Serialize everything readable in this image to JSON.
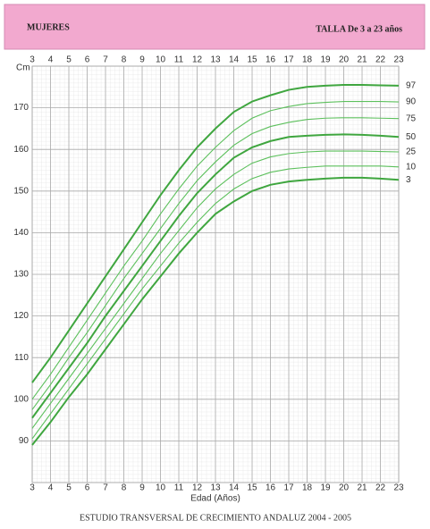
{
  "chart_data": {
    "type": "line",
    "title": "MUJERES",
    "subtitle": "TALLA De 3 a 23 años",
    "x_label": "Edad (Años)",
    "y_label": "Cm",
    "source": "ESTUDIO TRANSVERSAL DE CRECIMIENTO ANDALUZ 2004 - 2005",
    "x": [
      3,
      4,
      5,
      6,
      7,
      8,
      9,
      10,
      11,
      12,
      13,
      14,
      15,
      16,
      17,
      18,
      19,
      20,
      21,
      22,
      23
    ],
    "xlim": [
      3,
      23
    ],
    "xticks": [
      3,
      4,
      5,
      6,
      7,
      8,
      9,
      10,
      11,
      12,
      13,
      14,
      15,
      16,
      17,
      18,
      19,
      20,
      21,
      22,
      23
    ],
    "ylim": [
      80,
      180
    ],
    "yticks": [
      90,
      100,
      110,
      120,
      130,
      140,
      150,
      160,
      170
    ],
    "grid": true,
    "series": [
      {
        "name": "3",
        "color": "#3fa63f",
        "values": [
          89,
          94.5,
          100.5,
          106,
          112,
          118,
          124,
          129.5,
          135,
          140,
          144.5,
          147.5,
          150,
          151.5,
          152.3,
          152.7,
          153,
          153.2,
          153.2,
          153,
          152.7
        ]
      },
      {
        "name": "10",
        "color": "#5cc05c",
        "values": [
          90.5,
          96.5,
          102.5,
          108.5,
          114.5,
          120.5,
          126.5,
          132,
          137.5,
          142.5,
          147,
          150.5,
          153,
          154.5,
          155.3,
          155.7,
          156,
          156,
          156,
          156,
          155.8
        ]
      },
      {
        "name": "25",
        "color": "#5cc05c",
        "values": [
          93,
          99,
          105,
          111,
          117,
          123,
          129,
          135,
          140.5,
          146,
          150.5,
          154,
          156.7,
          158.2,
          159,
          159.4,
          159.6,
          159.6,
          159.6,
          159.5,
          159.4
        ]
      },
      {
        "name": "50",
        "color": "#3fa63f",
        "values": [
          95.5,
          101.5,
          107.5,
          113.5,
          120,
          126,
          132,
          138,
          144,
          149.5,
          154,
          158,
          160.5,
          162,
          163,
          163.3,
          163.5,
          163.6,
          163.5,
          163.3,
          163
        ]
      },
      {
        "name": "75",
        "color": "#5cc05c",
        "values": [
          97.5,
          103.5,
          110,
          116,
          122.5,
          129,
          135,
          141,
          147,
          152.5,
          157,
          161,
          163.8,
          165.5,
          166.5,
          167.2,
          167.5,
          167.6,
          167.6,
          167.5,
          167.4
        ]
      },
      {
        "name": "90",
        "color": "#5cc05c",
        "values": [
          100,
          106,
          112.5,
          119,
          125.5,
          132,
          138,
          144.5,
          150.5,
          156,
          160.5,
          164.5,
          167.5,
          169.3,
          170.3,
          171,
          171.3,
          171.5,
          171.5,
          171.5,
          171.4
        ]
      },
      {
        "name": "97",
        "color": "#3fa63f",
        "values": [
          104,
          110,
          116.5,
          123,
          129.5,
          136,
          142.5,
          149,
          155,
          160.5,
          165,
          169,
          171.5,
          173,
          174.3,
          175,
          175.3,
          175.5,
          175.5,
          175.4,
          175.3
        ]
      }
    ]
  }
}
